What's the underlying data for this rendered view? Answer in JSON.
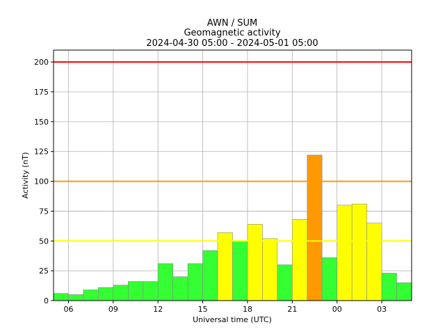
{
  "chart_data": {
    "type": "bar",
    "title": "AWN / SUM",
    "subtitle": "Geomagnetic activity",
    "date_range": "2024-04-30 05:00 - 2024-05-01 05:00",
    "xlabel": "Universal time (UTC)",
    "ylabel": "Activity (nT)",
    "ylim": [
      0,
      210
    ],
    "yticks": [
      0,
      25,
      50,
      75,
      100,
      125,
      150,
      175,
      200
    ],
    "xlim_hours": [
      0,
      24
    ],
    "xticks": [
      {
        "hour": 1,
        "label": "06"
      },
      {
        "hour": 4,
        "label": "09"
      },
      {
        "hour": 7,
        "label": "12"
      },
      {
        "hour": 10,
        "label": "15"
      },
      {
        "hour": 13,
        "label": "18"
      },
      {
        "hour": 16,
        "label": "21"
      },
      {
        "hour": 19,
        "label": "00"
      },
      {
        "hour": 22,
        "label": "03"
      }
    ],
    "grid": true,
    "bars": [
      {
        "start": "05:00",
        "value": 6,
        "color": "#33ff33"
      },
      {
        "start": "06:00",
        "value": 5,
        "color": "#33ff33"
      },
      {
        "start": "07:00",
        "value": 9,
        "color": "#33ff33"
      },
      {
        "start": "08:00",
        "value": 11,
        "color": "#33ff33"
      },
      {
        "start": "09:00",
        "value": 13,
        "color": "#33ff33"
      },
      {
        "start": "10:00",
        "value": 16,
        "color": "#33ff33"
      },
      {
        "start": "11:00",
        "value": 16,
        "color": "#33ff33"
      },
      {
        "start": "12:00",
        "value": 31,
        "color": "#33ff33"
      },
      {
        "start": "13:00",
        "value": 20,
        "color": "#33ff33"
      },
      {
        "start": "14:00",
        "value": 31,
        "color": "#33ff33"
      },
      {
        "start": "15:00",
        "value": 42,
        "color": "#33ff33"
      },
      {
        "start": "16:00",
        "value": 57,
        "color": "#ffff00"
      },
      {
        "start": "17:00",
        "value": 50,
        "color": "#33ff33"
      },
      {
        "start": "18:00",
        "value": 64,
        "color": "#ffff00"
      },
      {
        "start": "19:00",
        "value": 52,
        "color": "#ffff00"
      },
      {
        "start": "20:00",
        "value": 30,
        "color": "#33ff33"
      },
      {
        "start": "21:00",
        "value": 68,
        "color": "#ffff00"
      },
      {
        "start": "22:00",
        "value": 122,
        "color": "#ff9900"
      },
      {
        "start": "23:00",
        "value": 36,
        "color": "#33ff33"
      },
      {
        "start": "00:00",
        "value": 80,
        "color": "#ffff00"
      },
      {
        "start": "01:00",
        "value": 81,
        "color": "#ffff00"
      },
      {
        "start": "02:00",
        "value": 65,
        "color": "#ffff00"
      },
      {
        "start": "03:00",
        "value": 23,
        "color": "#33ff33"
      },
      {
        "start": "04:00",
        "value": 15,
        "color": "#33ff33"
      }
    ],
    "thresholds": [
      {
        "value": 50,
        "color": "#ffff00"
      },
      {
        "value": 100,
        "color": "#ff9900"
      },
      {
        "value": 200,
        "color": "#ff0000"
      }
    ]
  }
}
